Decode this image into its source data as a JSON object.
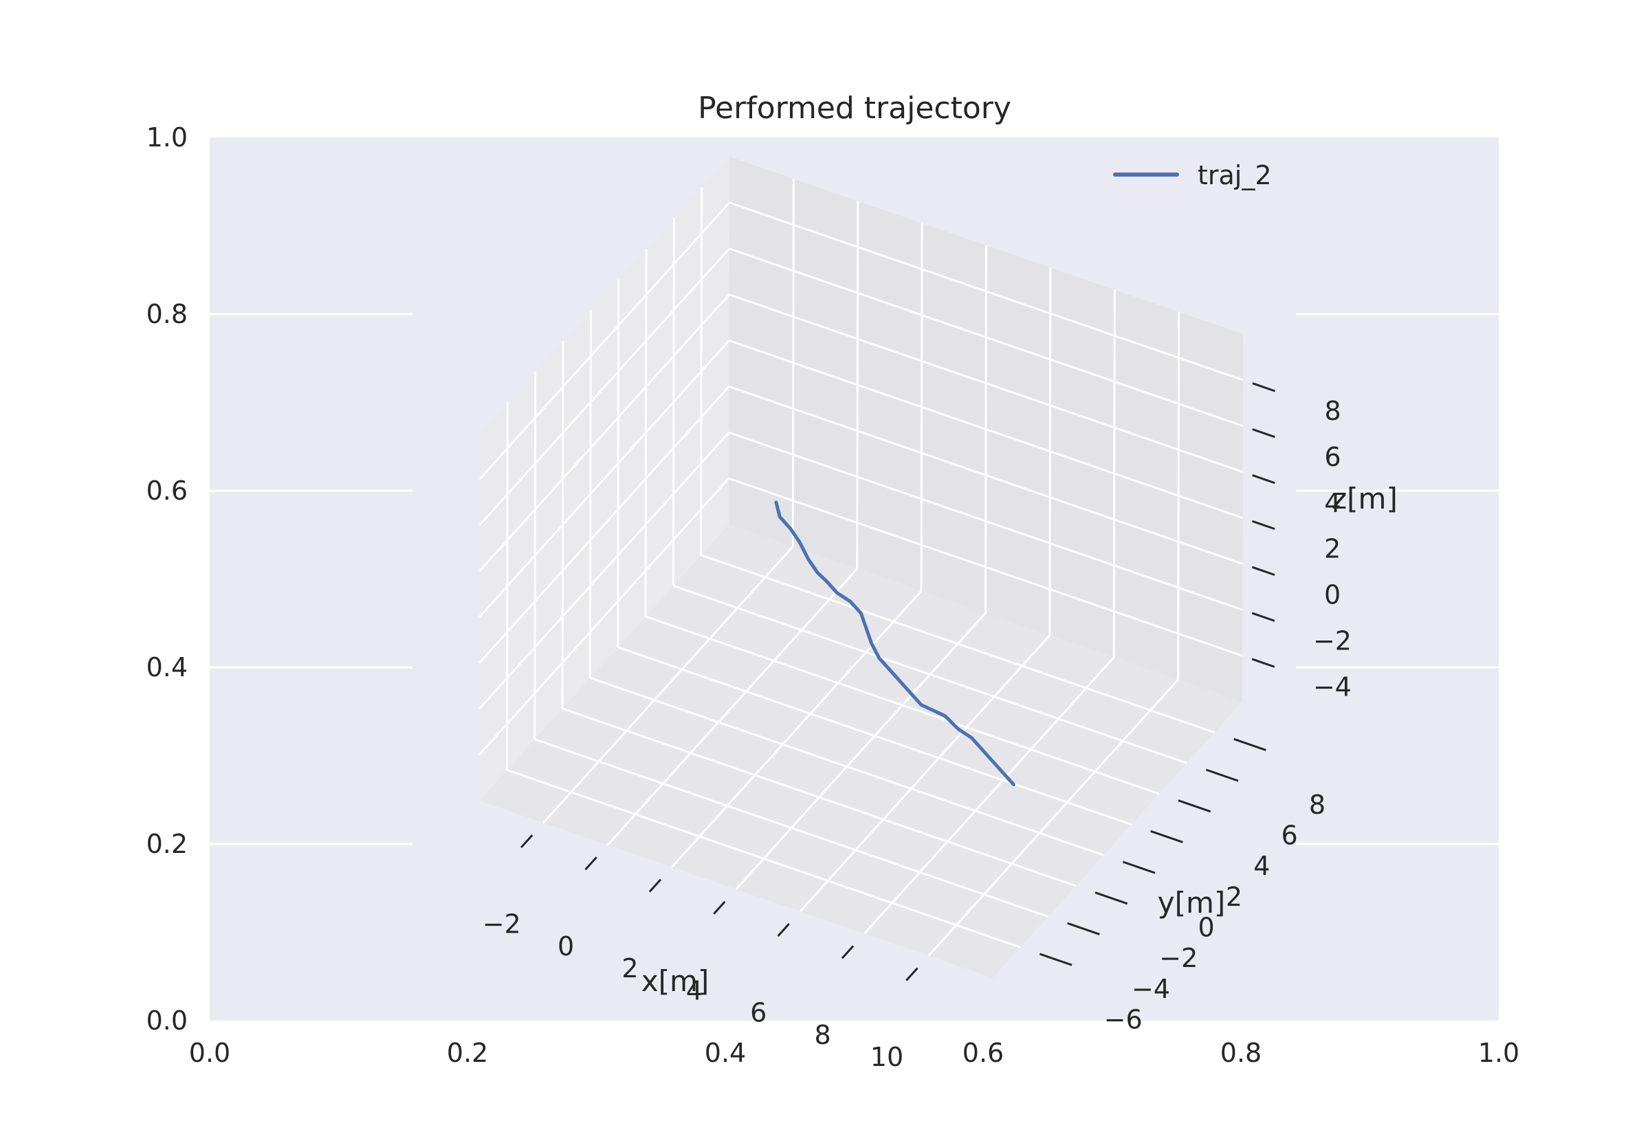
{
  "chart_data": [
    {
      "type": "line",
      "role": "outer-2d-axes",
      "xlim": [
        0.0,
        1.0
      ],
      "ylim": [
        0.0,
        1.0
      ],
      "xticks": [
        "0.0",
        "0.2",
        "0.4",
        "0.6",
        "0.8",
        "1.0"
      ],
      "yticks": [
        "0.0",
        "0.2",
        "0.4",
        "0.6",
        "0.8",
        "1.0"
      ],
      "grid": true,
      "background": "#eaeaf2",
      "series": []
    },
    {
      "type": "line3d",
      "title": "Performed trajectory",
      "xlabel": "x[m]",
      "ylabel": "y[m]",
      "zlabel": "z[m]",
      "xlim": [
        -4,
        12
      ],
      "ylim": [
        -8,
        10
      ],
      "zlim": [
        -6,
        10
      ],
      "xticks": [
        -2,
        0,
        2,
        4,
        6,
        8,
        10
      ],
      "yticks": [
        -6,
        -4,
        -2,
        0,
        2,
        4,
        6,
        8
      ],
      "zticks": [
        -4,
        -2,
        0,
        2,
        4,
        6,
        8
      ],
      "xtick_labels": [
        "−2",
        "0",
        "2",
        "4",
        "6",
        "8",
        "10"
      ],
      "ytick_labels": [
        "−6",
        "−4",
        "−2",
        "0",
        "2",
        "4",
        "6",
        "8"
      ],
      "ztick_labels": [
        "−4",
        "−2",
        "0",
        "2",
        "4",
        "6",
        "8"
      ],
      "grid": true,
      "legend": "top-right",
      "series": [
        {
          "name": "traj_2",
          "color": "#4c72b0",
          "x": [
            -0.2,
            0.0,
            0.5,
            1.0,
            1.5,
            2.0,
            2.5,
            3.0,
            3.5,
            4.0,
            4.5,
            5.0,
            5.5,
            6.0,
            6.5,
            7.0,
            7.5,
            8.0,
            8.5,
            9.0,
            9.5,
            10.0,
            10.5,
            11.0
          ],
          "y": [
            4.6,
            4.4,
            4.0,
            3.5,
            3.0,
            2.5,
            2.0,
            1.6,
            1.4,
            1.0,
            0.6,
            0.0,
            -0.4,
            -0.8,
            -1.2,
            -1.6,
            -1.9,
            -2.2,
            -2.4,
            -2.6,
            -3.0,
            -3.4,
            -3.8,
            -4.2
          ],
          "z": [
            0.4,
            0.0,
            0.0,
            0.0,
            -0.2,
            -0.2,
            0.0,
            0.0,
            0.0,
            0.0,
            -0.8,
            -0.8,
            -0.8,
            -0.8,
            -0.8,
            -0.8,
            -0.6,
            -0.4,
            -0.6,
            -0.6,
            -0.6,
            -0.6,
            -0.6,
            -0.6
          ]
        }
      ]
    }
  ]
}
